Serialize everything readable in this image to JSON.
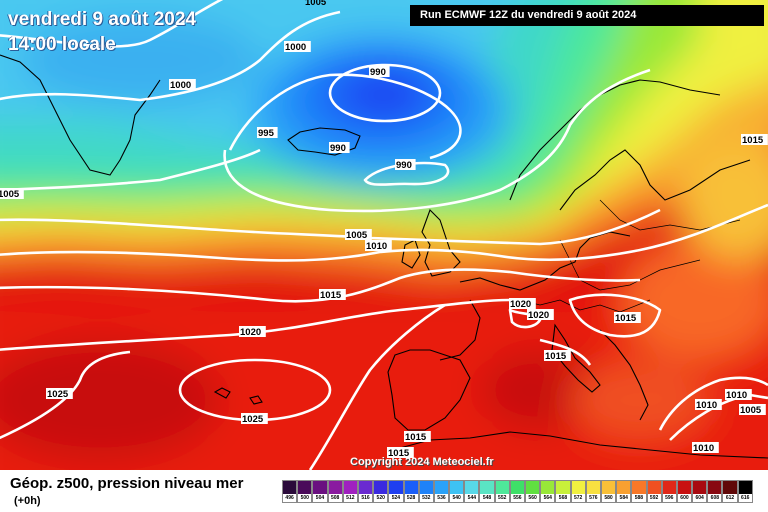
{
  "header": {
    "date_line": "vendredi 9 août 2024",
    "time_line": "14:00 locale",
    "run_info": "Run ECMWF 12Z du vendredi 9 août 2024"
  },
  "map": {
    "copyright": "Copyright 2024 Meteociel.fr",
    "isobar_labels": [
      "1005",
      "1000",
      "1000",
      "990",
      "995",
      "990",
      "990",
      "1005",
      "1005",
      "1010",
      "1015",
      "1020",
      "1020",
      "1015",
      "1015",
      "1020",
      "1025",
      "1025",
      "1015",
      "1015",
      "1010",
      "1010",
      "1005",
      "1010",
      "1015"
    ],
    "colors": {
      "sea_land_lines": "#000000",
      "isobars": "#ffffff"
    }
  },
  "footer": {
    "title": "Géop. z500, pression niveau mer",
    "subtitle": "(+0h)"
  },
  "legend": {
    "labels": [
      "496",
      "500",
      "504",
      "508",
      "512",
      "516",
      "520",
      "524",
      "528",
      "532",
      "536",
      "540",
      "544",
      "548",
      "552",
      "556",
      "560",
      "564",
      "568",
      "572",
      "576",
      "580",
      "584",
      "588",
      "592",
      "596",
      "600",
      "604",
      "608",
      "612",
      "616"
    ],
    "colors": [
      "#2a0a3a",
      "#4a0a5a",
      "#6a1080",
      "#8a1aa0",
      "#a020c0",
      "#6a2ad0",
      "#3a2ae0",
      "#1f3ff0",
      "#1a5ef8",
      "#1f82f8",
      "#2aa2f8",
      "#3ec2f4",
      "#58d8e8",
      "#5ae4c4",
      "#4ee89a",
      "#3ee068",
      "#60e040",
      "#98e838",
      "#c8f03a",
      "#f0f040",
      "#f8e040",
      "#f8c038",
      "#f8a030",
      "#f87828",
      "#f05020",
      "#e02818",
      "#c81010",
      "#a80a10",
      "#880810",
      "#600808",
      "#000000"
    ]
  }
}
